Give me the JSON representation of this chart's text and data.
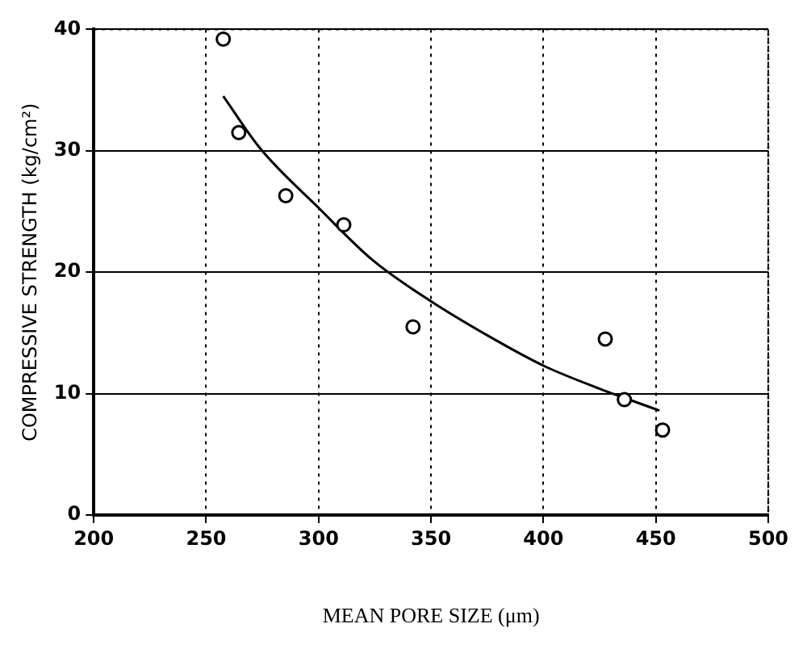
{
  "chart_data": {
    "type": "scatter",
    "xlabel": "MEAN PORE SIZE (μm)",
    "ylabel": "COMPRESSIVE STRENGTH (kg/cm²)",
    "xlim": [
      200,
      500
    ],
    "xticks": [
      200,
      250,
      300,
      350,
      400,
      450,
      500
    ],
    "ylim": [
      0,
      40
    ],
    "yticks": [
      0,
      10,
      20,
      30,
      40
    ],
    "grid": true,
    "marker": "circle",
    "series": [
      {
        "color": "#000000",
        "x": [
          257.6,
          264.5,
          285.4,
          311.2,
          342,
          427.5,
          436,
          453
        ],
        "values": [
          39.2,
          31.5,
          26.3,
          23.9,
          15.5,
          14.5,
          9.5,
          7.0
        ]
      },
      {
        "type": "line",
        "marker": "none",
        "color": "#000000",
        "x": [
          257.6,
          274,
          300,
          324,
          350,
          375,
          400,
          425,
          451.6
        ],
        "values": [
          34.5,
          30.2,
          25.3,
          21,
          17.6,
          14.8,
          12.3,
          10.4,
          8.6
        ]
      }
    ]
  }
}
